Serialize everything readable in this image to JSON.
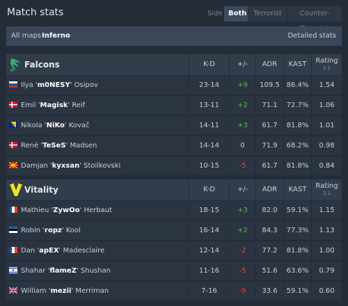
{
  "header": {
    "title": "Match stats",
    "side_label": "Side",
    "side_options": [
      "Both",
      "Terrorist",
      "Counter-Terrorist"
    ],
    "active_side": "Both"
  },
  "mapbar": {
    "all_maps": "All maps",
    "map": "Inferno",
    "detailed": "Detailed stats"
  },
  "columns": {
    "kd": "K-D",
    "pm": "+/-",
    "adr": "ADR",
    "kast": "KAST",
    "rating": "Rating",
    "rating_sub": "2.1"
  },
  "teams": [
    {
      "name": "Falcons",
      "logo": "falcon-logo-icon",
      "players": [
        {
          "first": "Ilya '",
          "nick": "m0NESY",
          "last": "' Osipov",
          "flag": "russia-flag-icon",
          "kd": "23-14",
          "pm": "+9",
          "adr": "109.5",
          "kast": "86.4%",
          "rating": "1.54"
        },
        {
          "first": "Emil '",
          "nick": "Magisk",
          "last": "' Reif",
          "flag": "denmark-flag-icon",
          "kd": "13-11",
          "pm": "+2",
          "adr": "71.1",
          "kast": "72.7%",
          "rating": "1.06"
        },
        {
          "first": "Nikola '",
          "nick": "NiKo",
          "last": "' Kovač",
          "flag": "bosnia-flag-icon",
          "kd": "14-11",
          "pm": "+3",
          "adr": "61.7",
          "kast": "81.8%",
          "rating": "1.01"
        },
        {
          "first": "René '",
          "nick": "TeSeS",
          "last": "' Madsen",
          "flag": "denmark-flag-icon",
          "kd": "14-14",
          "pm": "0",
          "adr": "71.9",
          "kast": "68.2%",
          "rating": "0.98"
        },
        {
          "first": "Damjan '",
          "nick": "kyxsan",
          "last": "' Stoilkovski",
          "flag": "macedonia-flag-icon",
          "kd": "10-15",
          "pm": "-5",
          "adr": "61.7",
          "kast": "81.8%",
          "rating": "0.84"
        }
      ]
    },
    {
      "name": "Vitality",
      "logo": "vitality-logo-icon",
      "players": [
        {
          "first": "Mathieu '",
          "nick": "ZywOo",
          "last": "' Herbaut",
          "flag": "france-flag-icon",
          "kd": "18-15",
          "pm": "+3",
          "adr": "82.0",
          "kast": "59.1%",
          "rating": "1.15"
        },
        {
          "first": "Robin '",
          "nick": "ropz",
          "last": "' Kool",
          "flag": "estonia-flag-icon",
          "kd": "16-14",
          "pm": "+2",
          "adr": "84.3",
          "kast": "77.3%",
          "rating": "1.13"
        },
        {
          "first": "Dan '",
          "nick": "apEX",
          "last": "' Madesclaire",
          "flag": "france-flag-icon",
          "kd": "12-14",
          "pm": "-2",
          "adr": "77.2",
          "kast": "81.8%",
          "rating": "1.00"
        },
        {
          "first": "Shahar '",
          "nick": "flameZ",
          "last": "' Shushan",
          "flag": "israel-flag-icon",
          "kd": "11-16",
          "pm": "-5",
          "adr": "51.6",
          "kast": "63.6%",
          "rating": "0.79"
        },
        {
          "first": "William '",
          "nick": "mezii",
          "last": "' Merriman",
          "flag": "uk-flag-icon",
          "kd": "7-16",
          "pm": "-9",
          "adr": "33.6",
          "kast": "59.1%",
          "rating": "0.60"
        }
      ]
    }
  ],
  "colors": {
    "background": "#242c37",
    "positive": "#5cb85c",
    "negative": "#e2453c",
    "falcons_green": "#2bb673",
    "vitality_yellow": "#f5e21a"
  }
}
